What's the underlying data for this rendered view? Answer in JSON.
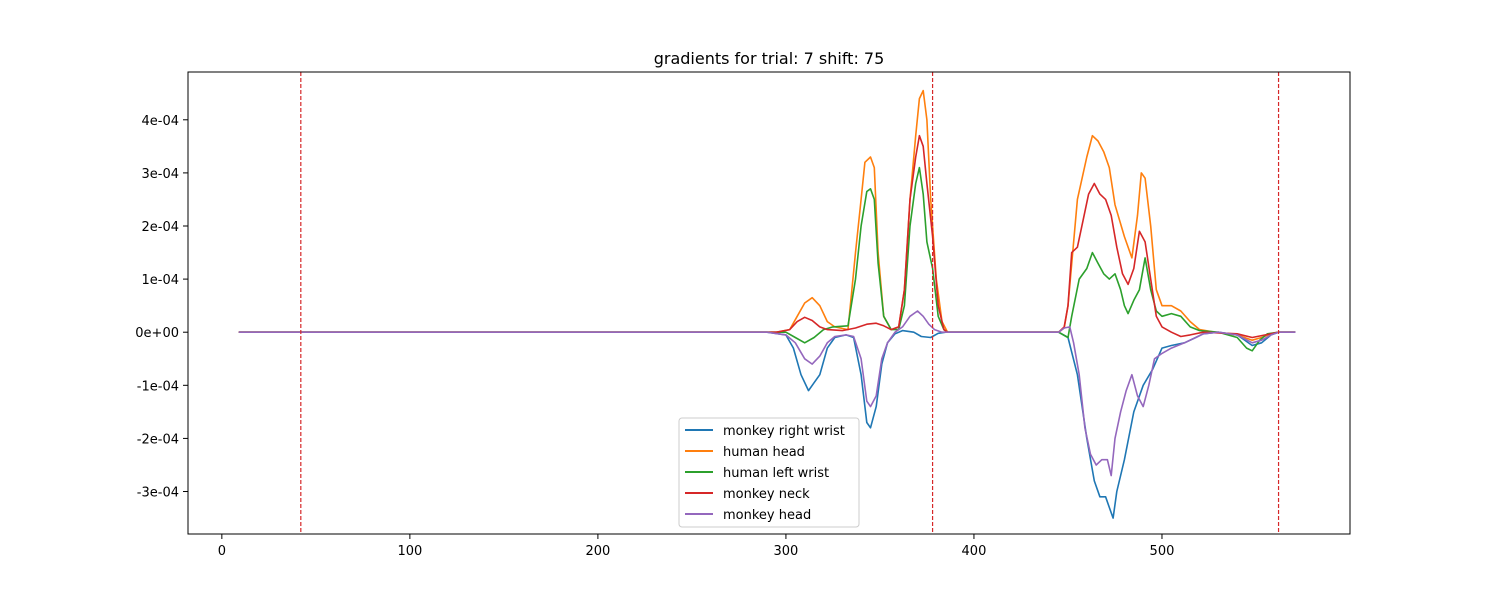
{
  "chart_data": {
    "type": "line",
    "title": "gradients for trial: 7 shift: 75",
    "xlabel": "",
    "ylabel": "",
    "xlim": [
      -18,
      600
    ],
    "ylim": [
      -0.00038,
      0.00049
    ],
    "x_ticks": [
      0,
      100,
      200,
      300,
      400,
      500
    ],
    "x_tick_labels": [
      "0",
      "100",
      "200",
      "300",
      "400",
      "500"
    ],
    "y_ticks": [
      -0.0003,
      -0.0002,
      -0.0001,
      0,
      0.0001,
      0.0002,
      0.0003,
      0.0004
    ],
    "y_tick_labels": [
      "-3e-04",
      "-2e-04",
      "-1e-04",
      "0e+00",
      "1e-04",
      "2e-04",
      "3e-04",
      "4e-04"
    ],
    "grid": false,
    "legend_position": "lower-center",
    "vlines": {
      "x": [
        42,
        378,
        562
      ],
      "color": "#d62728",
      "style": "dashed"
    },
    "series": [
      {
        "name": "monkey right wrist",
        "color": "#1f77b4",
        "points": [
          [
            9,
            0
          ],
          [
            290,
            0
          ],
          [
            300,
            -5e-06
          ],
          [
            304,
            -3e-05
          ],
          [
            308,
            -8e-05
          ],
          [
            312,
            -0.00011
          ],
          [
            315,
            -9.5e-05
          ],
          [
            318,
            -8e-05
          ],
          [
            322,
            -3e-05
          ],
          [
            326,
            -1e-05
          ],
          [
            332,
            -5e-06
          ],
          [
            336,
            -1e-05
          ],
          [
            340,
            -8e-05
          ],
          [
            343,
            -0.00017
          ],
          [
            345,
            -0.00018
          ],
          [
            348,
            -0.00014
          ],
          [
            351,
            -6e-05
          ],
          [
            354,
            -2e-05
          ],
          [
            358,
            -3e-06
          ],
          [
            362,
            3e-06
          ],
          [
            368,
            0
          ],
          [
            372,
            -8e-06
          ],
          [
            377,
            -1e-05
          ],
          [
            381,
            -2e-06
          ],
          [
            385,
            0
          ],
          [
            445,
            0
          ],
          [
            450,
            -1e-05
          ],
          [
            455,
            -8e-05
          ],
          [
            460,
            -0.0002
          ],
          [
            464,
            -0.00028
          ],
          [
            467,
            -0.00031
          ],
          [
            470,
            -0.00031
          ],
          [
            472,
            -0.00033
          ],
          [
            474,
            -0.00035
          ],
          [
            476,
            -0.0003
          ],
          [
            480,
            -0.00024
          ],
          [
            485,
            -0.00015
          ],
          [
            490,
            -0.0001
          ],
          [
            495,
            -7e-05
          ],
          [
            500,
            -3e-05
          ],
          [
            505,
            -2.5e-05
          ],
          [
            512,
            -2e-05
          ],
          [
            518,
            -1e-05
          ],
          [
            522,
            -3e-06
          ],
          [
            530,
            0
          ],
          [
            540,
            -5e-06
          ],
          [
            548,
            -2.5e-05
          ],
          [
            553,
            -2e-05
          ],
          [
            558,
            -5e-06
          ],
          [
            562,
            0
          ],
          [
            571,
            0
          ]
        ]
      },
      {
        "name": "human head",
        "color": "#ff7f0e",
        "points": [
          [
            9,
            0
          ],
          [
            295,
            0
          ],
          [
            302,
            5e-06
          ],
          [
            306,
            3e-05
          ],
          [
            310,
            5.5e-05
          ],
          [
            314,
            6.5e-05
          ],
          [
            318,
            5e-05
          ],
          [
            322,
            2e-05
          ],
          [
            326,
            1e-05
          ],
          [
            333,
            5e-06
          ],
          [
            337,
            0.00015
          ],
          [
            340,
            0.00025
          ],
          [
            342,
            0.00032
          ],
          [
            345,
            0.00033
          ],
          [
            347,
            0.00031
          ],
          [
            349,
            0.00015
          ],
          [
            352,
            3e-05
          ],
          [
            356,
            5e-06
          ],
          [
            360,
            1e-05
          ],
          [
            363,
            8e-05
          ],
          [
            366,
            0.00025
          ],
          [
            369,
            0.00037
          ],
          [
            371,
            0.00044
          ],
          [
            373,
            0.000455
          ],
          [
            375,
            0.0004
          ],
          [
            377,
            0.00025
          ],
          [
            380,
            0.0001
          ],
          [
            383,
            2e-05
          ],
          [
            386,
            0
          ],
          [
            445,
            0
          ],
          [
            448,
            8e-06
          ],
          [
            450,
            5e-05
          ],
          [
            455,
            0.00025
          ],
          [
            460,
            0.00033
          ],
          [
            463,
            0.00037
          ],
          [
            466,
            0.00036
          ],
          [
            469,
            0.00034
          ],
          [
            472,
            0.00031
          ],
          [
            475,
            0.00024
          ],
          [
            480,
            0.00018
          ],
          [
            484,
            0.00014
          ],
          [
            487,
            0.00022
          ],
          [
            489,
            0.0003
          ],
          [
            491,
            0.00029
          ],
          [
            494,
            0.0002
          ],
          [
            497,
            8e-05
          ],
          [
            500,
            5e-05
          ],
          [
            505,
            5e-05
          ],
          [
            510,
            4e-05
          ],
          [
            515,
            2e-05
          ],
          [
            520,
            5e-06
          ],
          [
            528,
            0
          ],
          [
            540,
            -5e-06
          ],
          [
            548,
            -1.5e-05
          ],
          [
            553,
            -1e-05
          ],
          [
            558,
            -3e-06
          ],
          [
            562,
            0
          ],
          [
            571,
            0
          ]
        ]
      },
      {
        "name": "human left wrist",
        "color": "#2ca02c",
        "points": [
          [
            9,
            0
          ],
          [
            300,
            0
          ],
          [
            305,
            -1e-05
          ],
          [
            310,
            -2e-05
          ],
          [
            315,
            -1e-05
          ],
          [
            320,
            5e-06
          ],
          [
            325,
            1e-05
          ],
          [
            333,
            1.2e-05
          ],
          [
            337,
            0.0001
          ],
          [
            340,
            0.0002
          ],
          [
            343,
            0.000265
          ],
          [
            345,
            0.00027
          ],
          [
            347,
            0.00025
          ],
          [
            349,
            0.00013
          ],
          [
            352,
            3e-05
          ],
          [
            356,
            5e-06
          ],
          [
            360,
            5e-06
          ],
          [
            363,
            5e-05
          ],
          [
            366,
            0.0002
          ],
          [
            369,
            0.00028
          ],
          [
            371,
            0.00031
          ],
          [
            373,
            0.00026
          ],
          [
            375,
            0.00017
          ],
          [
            378,
            0.00012
          ],
          [
            381,
            3e-05
          ],
          [
            384,
            5e-06
          ],
          [
            386,
            0
          ],
          [
            445,
            0
          ],
          [
            450,
            -1e-05
          ],
          [
            452,
            3e-05
          ],
          [
            456,
            0.0001
          ],
          [
            460,
            0.00012
          ],
          [
            463,
            0.00015
          ],
          [
            466,
            0.00013
          ],
          [
            469,
            0.00011
          ],
          [
            472,
            0.0001
          ],
          [
            475,
            0.00011
          ],
          [
            478,
            8e-05
          ],
          [
            480,
            5e-05
          ],
          [
            482,
            3.5e-05
          ],
          [
            485,
            6e-05
          ],
          [
            488,
            8e-05
          ],
          [
            491,
            0.00014
          ],
          [
            494,
            8e-05
          ],
          [
            497,
            4e-05
          ],
          [
            500,
            3e-05
          ],
          [
            505,
            3.5e-05
          ],
          [
            510,
            3e-05
          ],
          [
            515,
            1e-05
          ],
          [
            520,
            3e-06
          ],
          [
            530,
            0
          ],
          [
            540,
            -1e-05
          ],
          [
            545,
            -3e-05
          ],
          [
            548,
            -3.5e-05
          ],
          [
            552,
            -1.5e-05
          ],
          [
            556,
            -3e-06
          ],
          [
            562,
            0
          ],
          [
            571,
            0
          ]
        ]
      },
      {
        "name": "monkey neck",
        "color": "#d62728",
        "points": [
          [
            9,
            0
          ],
          [
            295,
            0
          ],
          [
            302,
            5e-06
          ],
          [
            306,
            2e-05
          ],
          [
            310,
            2.8e-05
          ],
          [
            314,
            2.2e-05
          ],
          [
            318,
            1e-05
          ],
          [
            322,
            5e-06
          ],
          [
            330,
            3e-06
          ],
          [
            337,
            8e-06
          ],
          [
            343,
            1.5e-05
          ],
          [
            348,
            1.7e-05
          ],
          [
            352,
            1.2e-05
          ],
          [
            356,
            5e-06
          ],
          [
            360,
            1e-05
          ],
          [
            363,
            8e-05
          ],
          [
            366,
            0.00025
          ],
          [
            369,
            0.00033
          ],
          [
            371,
            0.00037
          ],
          [
            373,
            0.00035
          ],
          [
            375,
            0.00028
          ],
          [
            378,
            0.00018
          ],
          [
            381,
            5e-05
          ],
          [
            384,
            5e-06
          ],
          [
            386,
            0
          ],
          [
            445,
            0
          ],
          [
            448,
            1e-05
          ],
          [
            450,
            5e-05
          ],
          [
            452,
            0.00015
          ],
          [
            455,
            0.00016
          ],
          [
            458,
            0.00021
          ],
          [
            461,
            0.00026
          ],
          [
            464,
            0.00028
          ],
          [
            467,
            0.00026
          ],
          [
            470,
            0.00025
          ],
          [
            473,
            0.00022
          ],
          [
            476,
            0.00016
          ],
          [
            479,
            0.00011
          ],
          [
            482,
            9e-05
          ],
          [
            485,
            0.00012
          ],
          [
            488,
            0.00019
          ],
          [
            491,
            0.00017
          ],
          [
            494,
            0.0001
          ],
          [
            497,
            3e-05
          ],
          [
            500,
            1e-05
          ],
          [
            505,
            0
          ],
          [
            510,
            -8e-06
          ],
          [
            515,
            -5e-06
          ],
          [
            522,
            0
          ],
          [
            540,
            -3e-06
          ],
          [
            548,
            -1e-05
          ],
          [
            555,
            -5e-06
          ],
          [
            562,
            0
          ],
          [
            571,
            0
          ]
        ]
      },
      {
        "name": "monkey head",
        "color": "#9467bd",
        "points": [
          [
            9,
            0
          ],
          [
            290,
            0
          ],
          [
            300,
            -5e-06
          ],
          [
            305,
            -2e-05
          ],
          [
            310,
            -5e-05
          ],
          [
            314,
            -6e-05
          ],
          [
            318,
            -4.5e-05
          ],
          [
            322,
            -2e-05
          ],
          [
            326,
            -8e-06
          ],
          [
            332,
            -5e-06
          ],
          [
            336,
            -8e-06
          ],
          [
            340,
            -5e-05
          ],
          [
            343,
            -0.00013
          ],
          [
            345,
            -0.00014
          ],
          [
            348,
            -0.00012
          ],
          [
            351,
            -5e-05
          ],
          [
            354,
            -2e-05
          ],
          [
            358,
            0
          ],
          [
            362,
            1e-05
          ],
          [
            366,
            3e-05
          ],
          [
            370,
            4e-05
          ],
          [
            373,
            3e-05
          ],
          [
            376,
            1.5e-05
          ],
          [
            379,
            5e-06
          ],
          [
            383,
            0
          ],
          [
            445,
            0
          ],
          [
            448,
            8e-06
          ],
          [
            451,
            1e-05
          ],
          [
            453,
            -2e-05
          ],
          [
            456,
            -8e-05
          ],
          [
            459,
            -0.00018
          ],
          [
            462,
            -0.00023
          ],
          [
            465,
            -0.00025
          ],
          [
            468,
            -0.00024
          ],
          [
            471,
            -0.00024
          ],
          [
            473,
            -0.00027
          ],
          [
            475,
            -0.0002
          ],
          [
            478,
            -0.00015
          ],
          [
            481,
            -0.00011
          ],
          [
            484,
            -8e-05
          ],
          [
            487,
            -0.00012
          ],
          [
            490,
            -0.00014
          ],
          [
            493,
            -0.0001
          ],
          [
            496,
            -5e-05
          ],
          [
            500,
            -4e-05
          ],
          [
            505,
            -3e-05
          ],
          [
            512,
            -2e-05
          ],
          [
            518,
            -1e-05
          ],
          [
            522,
            -3e-06
          ],
          [
            530,
            0
          ],
          [
            540,
            -5e-06
          ],
          [
            548,
            -2e-05
          ],
          [
            553,
            -1.5e-05
          ],
          [
            558,
            -5e-06
          ],
          [
            562,
            0
          ],
          [
            571,
            0
          ]
        ]
      }
    ]
  }
}
